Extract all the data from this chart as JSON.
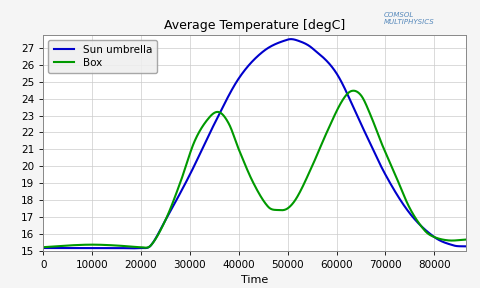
{
  "title": "Average Temperature [degC]",
  "xlabel": "Time",
  "xlim": [
    0,
    86400
  ],
  "ylim": [
    15,
    27.8
  ],
  "yticks": [
    15,
    16,
    17,
    18,
    19,
    20,
    21,
    22,
    23,
    24,
    25,
    26,
    27
  ],
  "xticks": [
    0,
    10000,
    20000,
    30000,
    40000,
    50000,
    60000,
    70000,
    80000
  ],
  "legend_labels": [
    "Sun umbrella",
    "Box"
  ],
  "line_colors": [
    "#0000cc",
    "#009900"
  ],
  "background_color": "#f5f5f5",
  "plot_bg_color": "#ffffff",
  "grid_color": "#cccccc",
  "title_fontsize": 9,
  "axis_fontsize": 8,
  "tick_fontsize": 7.5,
  "comsol_text": "COMSOL\nMULTIPHYSICS",
  "comsol_color": "#5588bb"
}
